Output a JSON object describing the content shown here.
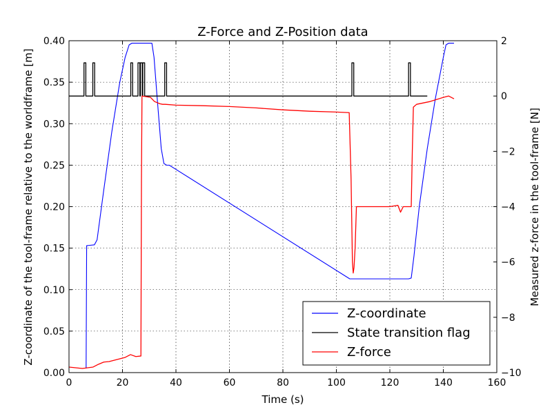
{
  "chart_data": {
    "type": "line",
    "title": "Z-Force and Z-Position data",
    "xlabel": "Time (s)",
    "ylabel_left": "Z-coordinate of the tool-frame relative to the worldframe [m]",
    "ylabel_right": "Measured z-force in the tool-frame [N]",
    "xlim": [
      0,
      160
    ],
    "ylim_left": [
      0.0,
      0.4
    ],
    "ylim_right": [
      -10,
      2
    ],
    "xticks": [
      "0",
      "20",
      "40",
      "60",
      "80",
      "100",
      "120",
      "140",
      "160"
    ],
    "yticks_left": [
      "0.00",
      "0.05",
      "0.10",
      "0.15",
      "0.20",
      "0.25",
      "0.30",
      "0.35",
      "0.40"
    ],
    "yticks_right": [
      "−10",
      "−8",
      "−6",
      "−4",
      "−2",
      "0",
      "2"
    ],
    "grid": true,
    "legend_position": "lower-right",
    "series": [
      {
        "name": "Z-coordinate",
        "color": "#0000ff",
        "axis": "left",
        "x": [
          0,
          6.4,
          6.6,
          9.5,
          10.5,
          13,
          16,
          19,
          21,
          22.5,
          23.5,
          31,
          31.8,
          33,
          34.5,
          35.5,
          36.5,
          37.5,
          105,
          106,
          127,
          128,
          129,
          131,
          134,
          137,
          140,
          141,
          142,
          144
        ],
        "y": [
          null,
          0.005,
          0.153,
          0.154,
          0.16,
          0.22,
          0.29,
          0.35,
          0.38,
          0.395,
          0.397,
          0.397,
          0.38,
          0.33,
          0.27,
          0.252,
          0.25,
          0.25,
          0.113,
          0.113,
          0.113,
          0.114,
          0.14,
          0.2,
          0.27,
          0.33,
          0.38,
          0.395,
          0.397,
          0.397
        ]
      },
      {
        "name": "State transition flag",
        "color": "#000000",
        "axis": "right",
        "x": [
          0,
          5.6,
          5.6,
          6.3,
          6.3,
          8.9,
          8.9,
          9.6,
          9.6,
          23.1,
          23.1,
          23.8,
          23.8,
          25.8,
          25.8,
          26.5,
          26.5,
          26.7,
          26.7,
          27.4,
          27.4,
          27.6,
          27.6,
          28.3,
          28.3,
          35.8,
          35.8,
          36.5,
          36.5,
          105.8,
          105.8,
          106.5,
          106.5,
          127,
          127,
          127.7,
          127.7,
          134
        ],
        "y": [
          0,
          0,
          1.2,
          1.2,
          0,
          0,
          1.2,
          1.2,
          0,
          0,
          1.2,
          1.2,
          0,
          0,
          1.2,
          1.2,
          0,
          0,
          1.2,
          1.2,
          0,
          0,
          1.2,
          1.2,
          0,
          0,
          1.2,
          1.2,
          0,
          0,
          1.2,
          1.2,
          0,
          0,
          1.2,
          1.2,
          0,
          0
        ]
      },
      {
        "name": "Z-force",
        "color": "#ff0000",
        "axis": "right",
        "x": [
          0,
          5,
          9,
          11,
          13,
          15,
          17,
          19,
          21,
          23,
          25,
          26.9,
          27.1,
          27.3,
          30.5,
          31,
          32,
          34,
          35,
          36,
          40,
          50,
          60,
          70,
          80,
          90,
          100,
          104.8,
          105.5,
          106,
          106.3,
          106.6,
          107,
          107.5,
          108,
          110,
          115,
          120,
          123,
          124,
          125,
          128,
          128.4,
          128.8,
          130,
          135,
          140,
          142,
          144
        ],
        "y": [
          -9.8,
          -9.85,
          -9.8,
          -9.7,
          -9.62,
          -9.6,
          -9.55,
          -9.5,
          -9.45,
          -9.35,
          -9.42,
          -9.4,
          -3,
          0,
          -0.05,
          -0.1,
          -0.2,
          -0.28,
          -0.3,
          -0.3,
          -0.33,
          -0.35,
          -0.38,
          -0.43,
          -0.5,
          -0.55,
          -0.58,
          -0.6,
          -3,
          -6,
          -6.4,
          -6.2,
          -5.5,
          -4,
          -4,
          -4,
          -4,
          -4,
          -3.95,
          -4.2,
          -4,
          -4,
          -2,
          -0.4,
          -0.3,
          -0.2,
          -0.05,
          0,
          -0.1
        ]
      }
    ]
  }
}
